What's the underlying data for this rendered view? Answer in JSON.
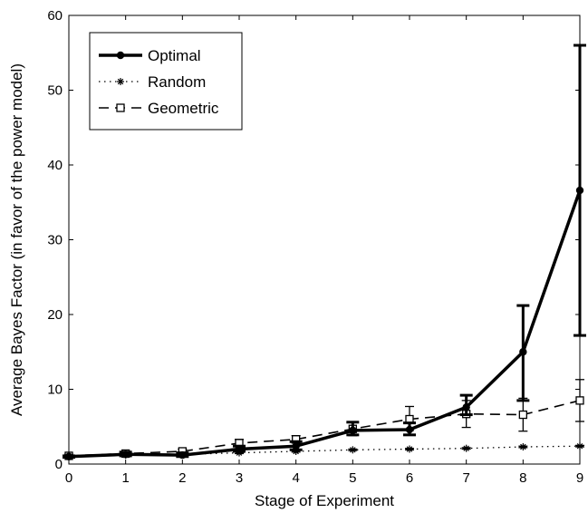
{
  "chart_data": {
    "type": "line",
    "xlabel": "Stage of Experiment",
    "ylabel": "Average Bayes Factor (in favor of the power model)",
    "xlim": [
      0,
      9
    ],
    "ylim": [
      0,
      60
    ],
    "xticks": [
      0,
      1,
      2,
      3,
      4,
      5,
      6,
      7,
      8,
      9
    ],
    "yticks": [
      0,
      10,
      20,
      30,
      40,
      50,
      60
    ],
    "grid": false,
    "legend_position": "top-left",
    "series": [
      {
        "name": "Optimal",
        "style": "solid-thick",
        "marker": "dot",
        "color": "#000000",
        "x": [
          0,
          1,
          2,
          3,
          4,
          5,
          6,
          7,
          8,
          9
        ],
        "y": [
          1.0,
          1.3,
          1.2,
          2.0,
          2.4,
          4.5,
          4.6,
          7.6,
          15.0,
          36.6
        ],
        "err_low": [
          0.9,
          1.1,
          1.0,
          1.7,
          1.9,
          3.9,
          3.9,
          6.6,
          8.5,
          17.2
        ],
        "err_high": [
          1.1,
          1.6,
          1.5,
          2.4,
          3.0,
          5.6,
          5.5,
          9.2,
          21.2,
          56.0
        ]
      },
      {
        "name": "Random",
        "style": "dotted",
        "marker": "asterisk",
        "color": "#000000",
        "x": [
          0,
          1,
          2,
          3,
          4,
          5,
          6,
          7,
          8,
          9
        ],
        "y": [
          1.0,
          1.2,
          1.3,
          1.5,
          1.7,
          1.9,
          2.0,
          2.1,
          2.3,
          2.4
        ],
        "err_low": [
          0.9,
          1.1,
          1.2,
          1.4,
          1.6,
          1.8,
          1.9,
          2.0,
          2.2,
          2.3
        ],
        "err_high": [
          1.1,
          1.3,
          1.4,
          1.6,
          1.8,
          2.0,
          2.1,
          2.2,
          2.4,
          2.5
        ]
      },
      {
        "name": "Geometric",
        "style": "dashed",
        "marker": "square",
        "color": "#000000",
        "x": [
          0,
          1,
          2,
          3,
          4,
          5,
          6,
          7,
          8,
          9
        ],
        "y": [
          1.1,
          1.4,
          1.7,
          2.8,
          3.3,
          4.7,
          6.0,
          6.7,
          6.6,
          8.5
        ],
        "err_low": [
          0.9,
          1.2,
          1.4,
          2.3,
          2.8,
          3.8,
          4.5,
          4.9,
          4.4,
          5.7
        ],
        "err_high": [
          1.3,
          1.6,
          2.0,
          3.3,
          3.8,
          5.6,
          7.7,
          8.5,
          8.8,
          11.3
        ]
      }
    ]
  }
}
